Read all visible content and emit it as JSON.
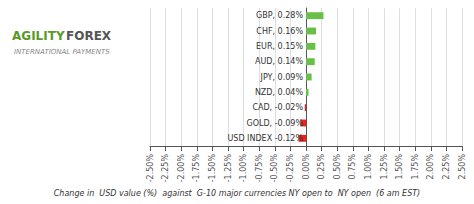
{
  "chart_data": {
    "type": "bar",
    "orientation": "horizontal",
    "subtitle": "Change in  USD value (%)  against  G-10 major currencies NY open to  NY open  (6 am EST)",
    "categories": [
      "USD INDEX",
      "GOLD",
      "CAD",
      "NZD",
      "JPY",
      "AUD",
      "EUR",
      "CHF",
      "GBP"
    ],
    "values": [
      -0.12,
      -0.09,
      -0.02,
      0.04,
      0.09,
      0.14,
      0.15,
      0.16,
      0.28
    ],
    "colors": [
      "#e8251a",
      "#e8251a",
      "#e8251a",
      "#6abf4b",
      "#6abf4b",
      "#6abf4b",
      "#6abf4b",
      "#6abf4b",
      "#6abf4b"
    ],
    "data_labels": true,
    "value_labels": [
      "USD INDEX -0.12%",
      "GOLD, -0.09%",
      "CAD, -0.02%",
      "NZD, 0.04%",
      "JPY, 0.09%",
      "AUD, 0.14%",
      "EUR, 0.15%",
      "CHF, 0.16%",
      "GBP, 0.28%"
    ],
    "xlim": [
      -2.5,
      2.5
    ],
    "xticks": [
      {
        "value": -2.5,
        "label": "-2.50%"
      },
      {
        "value": -2.25,
        "label": "-2.25%"
      },
      {
        "value": -2.0,
        "label": "-2.00%"
      },
      {
        "value": -1.75,
        "label": "-1.75%"
      },
      {
        "value": -1.5,
        "label": "-1.50%"
      },
      {
        "value": -1.25,
        "label": "-1.25%"
      },
      {
        "value": -1.0,
        "label": "-1.00%"
      },
      {
        "value": -0.75,
        "label": "-0.75%"
      },
      {
        "value": -0.5,
        "label": "-0.50%"
      },
      {
        "value": -0.25,
        "label": "-0.25%"
      },
      {
        "value": 0,
        "label": "0.00%"
      },
      {
        "value": 0.25,
        "label": "0.25%"
      },
      {
        "value": 0.5,
        "label": "0.50%"
      },
      {
        "value": 0.75,
        "label": "0.75%"
      },
      {
        "value": 1.0,
        "label": "1.00%"
      },
      {
        "value": 1.25,
        "label": "1.25%"
      },
      {
        "value": 1.5,
        "label": "1.50%"
      },
      {
        "value": 1.75,
        "label": "1.75%"
      },
      {
        "value": 2.0,
        "label": "2.00%"
      },
      {
        "value": 2.25,
        "label": "2.25%"
      },
      {
        "value": 2.5,
        "label": "2.50%"
      }
    ],
    "grid": true,
    "tick_labels": "x",
    "annotations": [
      {
        "text": "AGILITY",
        "color": "#5a9a28"
      },
      {
        "text": "FOREX",
        "color": "#555555"
      },
      {
        "text": "INTERNATIONAL PAYMENTS"
      }
    ]
  }
}
